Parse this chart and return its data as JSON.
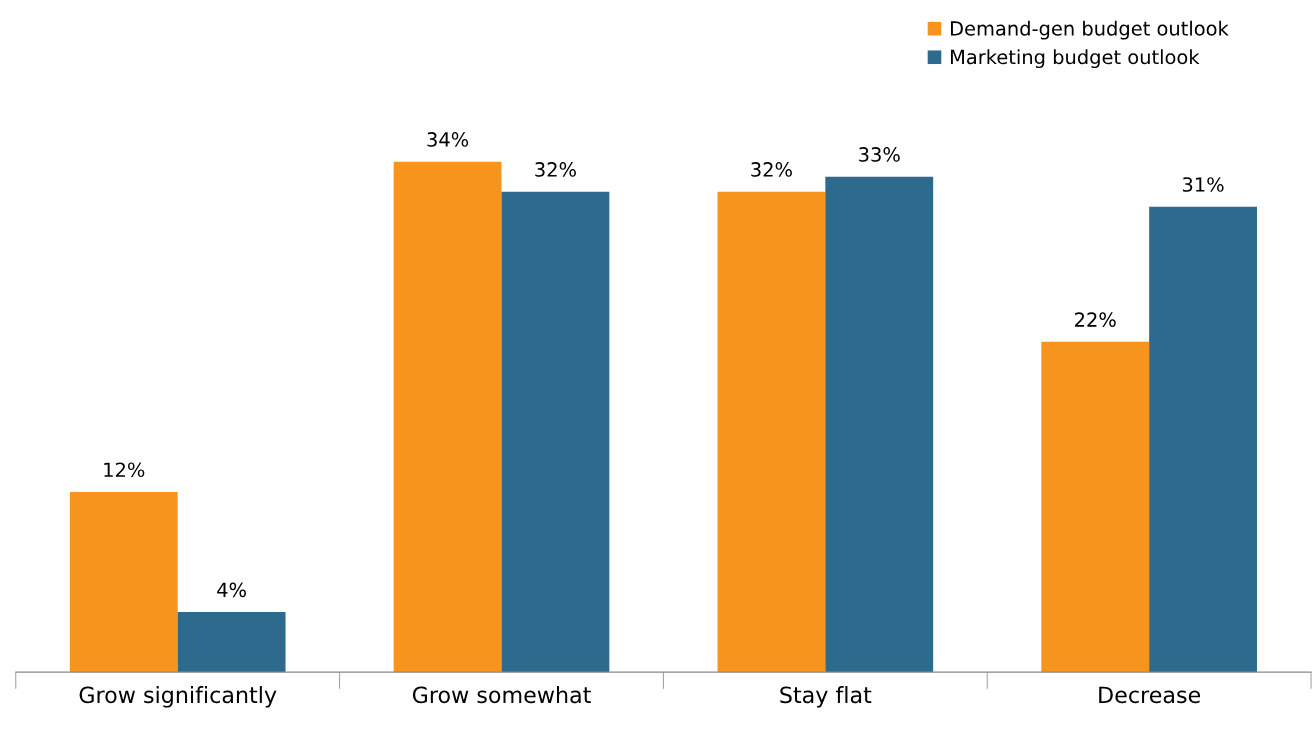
{
  "chart_data": {
    "type": "bar",
    "categories": [
      "Grow significantly",
      "Grow somewhat",
      "Stay flat",
      "Decrease"
    ],
    "series": [
      {
        "name": "Demand-gen budget outlook",
        "color": "#f7941d",
        "values": [
          12,
          34,
          32,
          22
        ],
        "value_labels": [
          "12%",
          "34%",
          "32%",
          "22%"
        ]
      },
      {
        "name": "Marketing budget outlook",
        "color": "#2e6a8e",
        "values": [
          4,
          32,
          33,
          31
        ],
        "value_labels": [
          "4%",
          "32%",
          "33%",
          "31%"
        ]
      }
    ],
    "legend": "top right",
    "grid": false,
    "tick_labels": "x"
  }
}
